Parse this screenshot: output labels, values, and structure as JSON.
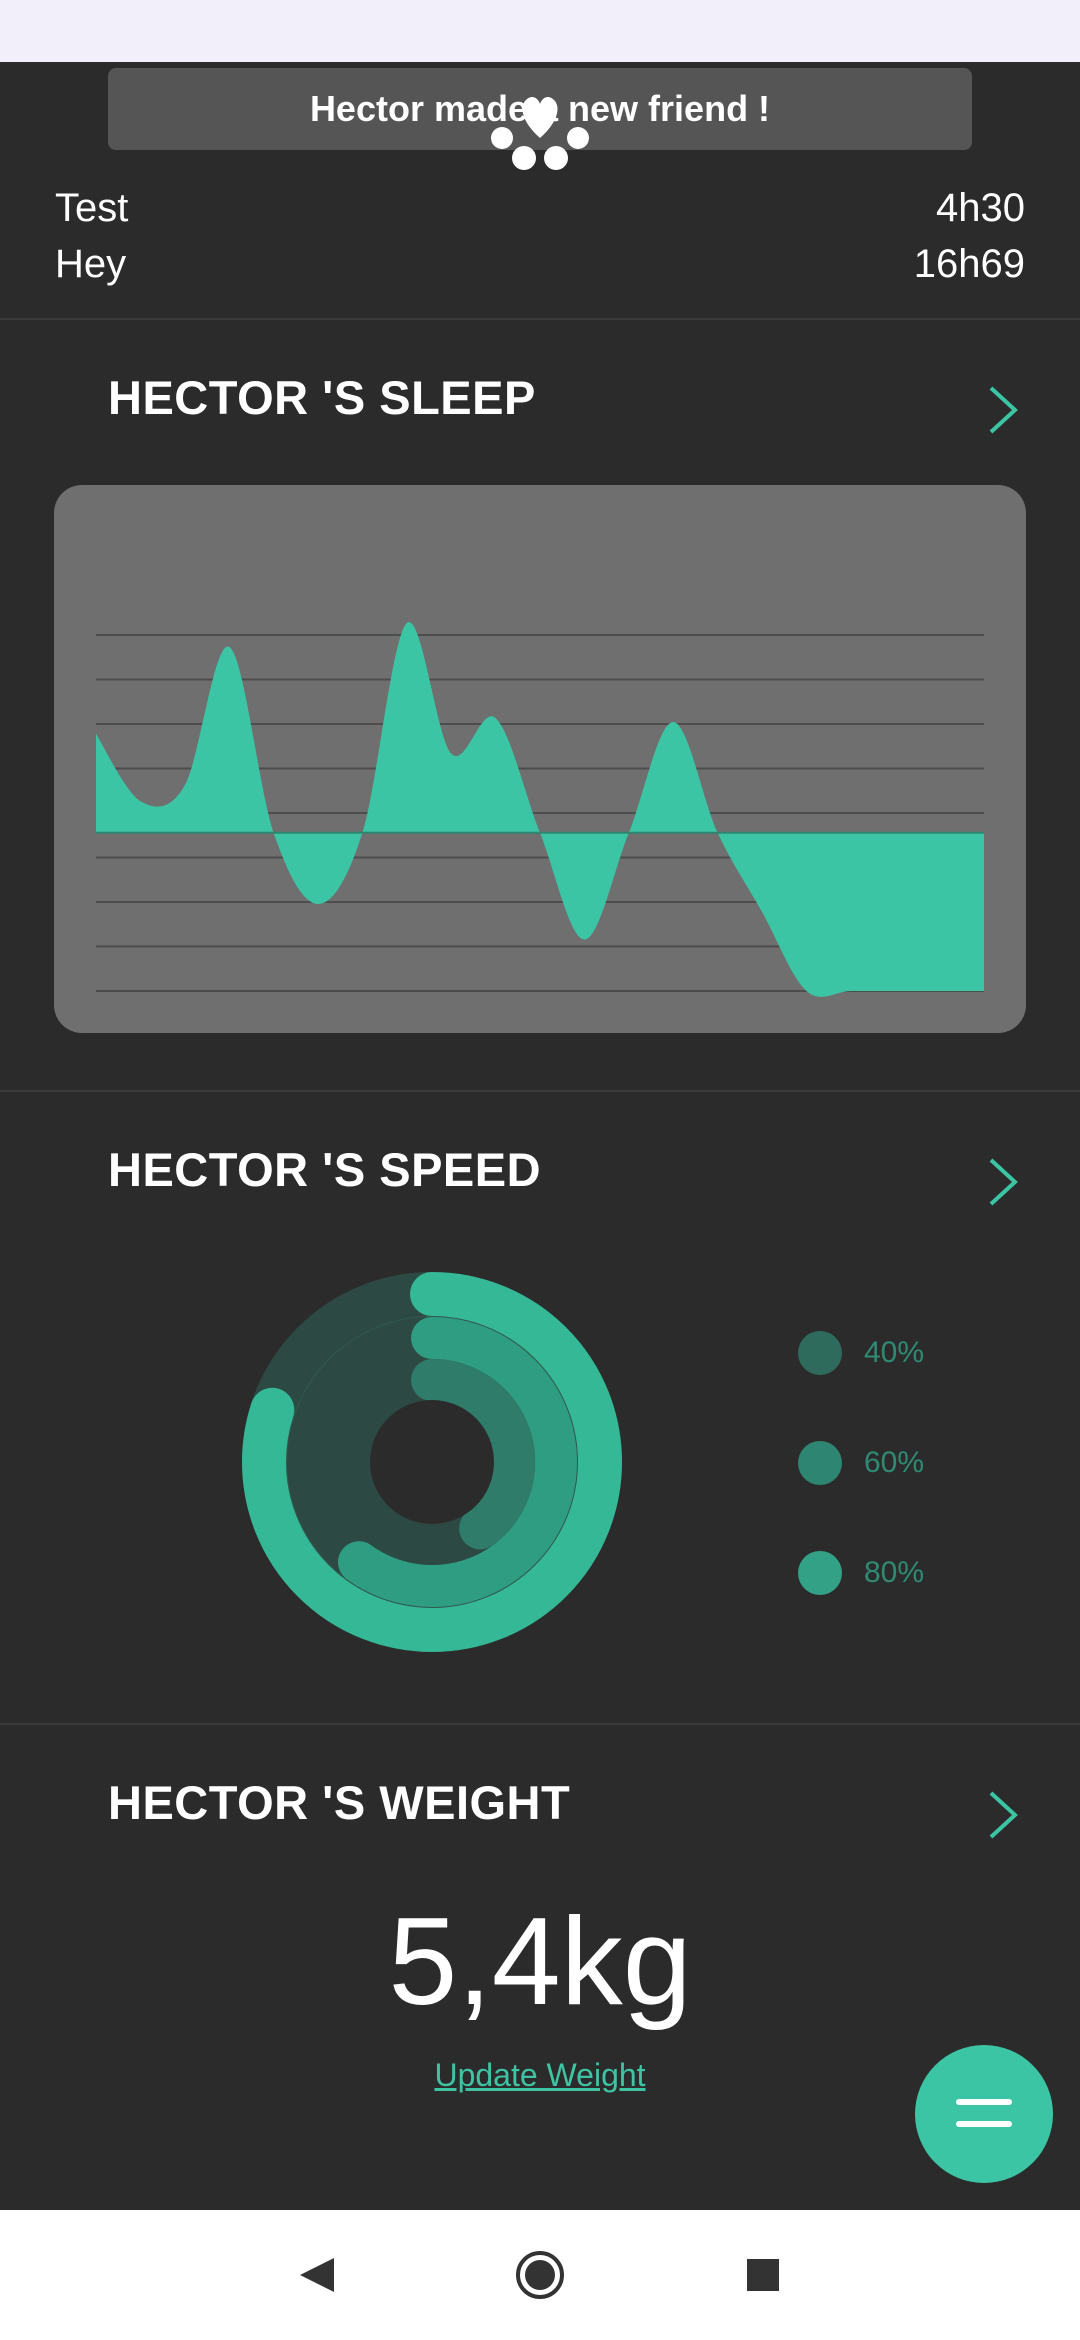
{
  "toast": {
    "text": "Hector made a new friend !"
  },
  "info_rows": [
    {
      "label": "Test",
      "value": "4h30"
    },
    {
      "label": "Hey",
      "value": "16h69"
    }
  ],
  "sections": {
    "sleep": {
      "title": "HECTOR 'S SLEEP"
    },
    "speed": {
      "title": "HECTOR 'S SPEED",
      "legend": [
        {
          "label": "40%",
          "color": "#2f6b5c"
        },
        {
          "label": "60%",
          "color": "#2e8571"
        },
        {
          "label": "80%",
          "color": "#33a185"
        }
      ]
    },
    "weight": {
      "title": "HECTOR 'S WEIGHT",
      "value": "5,4kg",
      "link": "Update Weight"
    }
  },
  "colors": {
    "accent": "#3cc5a4",
    "background": "#2b2b2b",
    "card": "#6f6f6f"
  },
  "icons": {
    "toast": "paw-icon",
    "section_nav": "chevron-right-icon",
    "fab": "menu-icon",
    "nav": [
      "back-icon",
      "home-icon",
      "recents-icon"
    ]
  },
  "chart_data": [
    {
      "type": "area",
      "x": [
        0,
        1,
        2,
        3,
        4,
        5,
        6,
        7,
        8,
        9,
        10,
        11,
        12,
        13,
        14,
        15,
        16,
        17,
        18,
        19,
        20
      ],
      "series": [
        {
          "values": [
            2.5,
            0.8,
            1.2,
            4.7,
            0.0,
            -1.8,
            0.0,
            5.3,
            2.0,
            2.9,
            0.0,
            -2.7,
            0.0,
            2.8,
            0.0,
            -2.0,
            -4.0,
            -4.0,
            -4.0,
            -4.0,
            -4.0
          ]
        }
      ],
      "ylim": [
        -4,
        5
      ]
    },
    {
      "type": "pie",
      "labels": [
        "40%",
        "60%",
        "80%"
      ],
      "values": [
        40,
        60,
        80
      ]
    }
  ]
}
